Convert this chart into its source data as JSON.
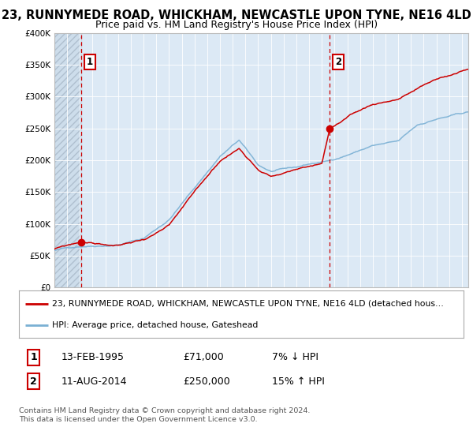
{
  "title": "23, RUNNYMEDE ROAD, WHICKHAM, NEWCASTLE UPON TYNE, NE16 4LD",
  "subtitle": "Price paid vs. HM Land Registry's House Price Index (HPI)",
  "ylim": [
    0,
    400000
  ],
  "yticks": [
    0,
    50000,
    100000,
    150000,
    200000,
    250000,
    300000,
    350000,
    400000
  ],
  "ytick_labels": [
    "£0",
    "£50K",
    "£100K",
    "£150K",
    "£200K",
    "£250K",
    "£300K",
    "£350K",
    "£400K"
  ],
  "background_color": "#ffffff",
  "plot_bg_color": "#dce9f5",
  "grid_color": "#ffffff",
  "red_line_color": "#cc0000",
  "blue_line_color": "#7ab0d4",
  "marker1_date": "13-FEB-1995",
  "marker1_price": 71000,
  "marker1_hpi": "7% ↓ HPI",
  "marker1_x": 1995.12,
  "marker2_date": "11-AUG-2014",
  "marker2_price": 250000,
  "marker2_hpi": "15% ↑ HPI",
  "marker2_x": 2014.62,
  "legend_red_label": "23, RUNNYMEDE ROAD, WHICKHAM, NEWCASTLE UPON TYNE, NE16 4LD (detached hous…",
  "legend_blue_label": "HPI: Average price, detached house, Gateshead",
  "footer": "Contains HM Land Registry data © Crown copyright and database right 2024.\nThis data is licensed under the Open Government Licence v3.0.",
  "xmin": 1993.0,
  "xmax": 2025.5,
  "title_fontsize": 10.5,
  "subtitle_fontsize": 9,
  "tick_fontsize": 7.5,
  "hpi_keypoints_x": [
    1993.0,
    1995.0,
    1998.0,
    2000.0,
    2002.0,
    2004.0,
    2006.0,
    2007.5,
    2009.0,
    2010.0,
    2012.0,
    2013.0,
    2014.62,
    2016.0,
    2018.0,
    2020.0,
    2021.5,
    2023.0,
    2025.5
  ],
  "hpi_keypoints_y": [
    58000,
    65000,
    70000,
    80000,
    110000,
    160000,
    210000,
    235000,
    195000,
    185000,
    190000,
    195000,
    200000,
    210000,
    225000,
    230000,
    255000,
    265000,
    275000
  ],
  "red_keypoints_x": [
    1993.0,
    1995.12,
    1998.0,
    2000.0,
    2002.0,
    2004.0,
    2006.0,
    2007.5,
    2009.0,
    2010.0,
    2012.0,
    2013.0,
    2014.0,
    2014.62,
    2016.0,
    2018.0,
    2020.0,
    2021.5,
    2023.0,
    2025.5
  ],
  "red_keypoints_y": [
    60000,
    71000,
    65000,
    75000,
    95000,
    145000,
    195000,
    215000,
    185000,
    175000,
    185000,
    190000,
    195000,
    250000,
    265000,
    285000,
    295000,
    310000,
    325000,
    340000
  ]
}
